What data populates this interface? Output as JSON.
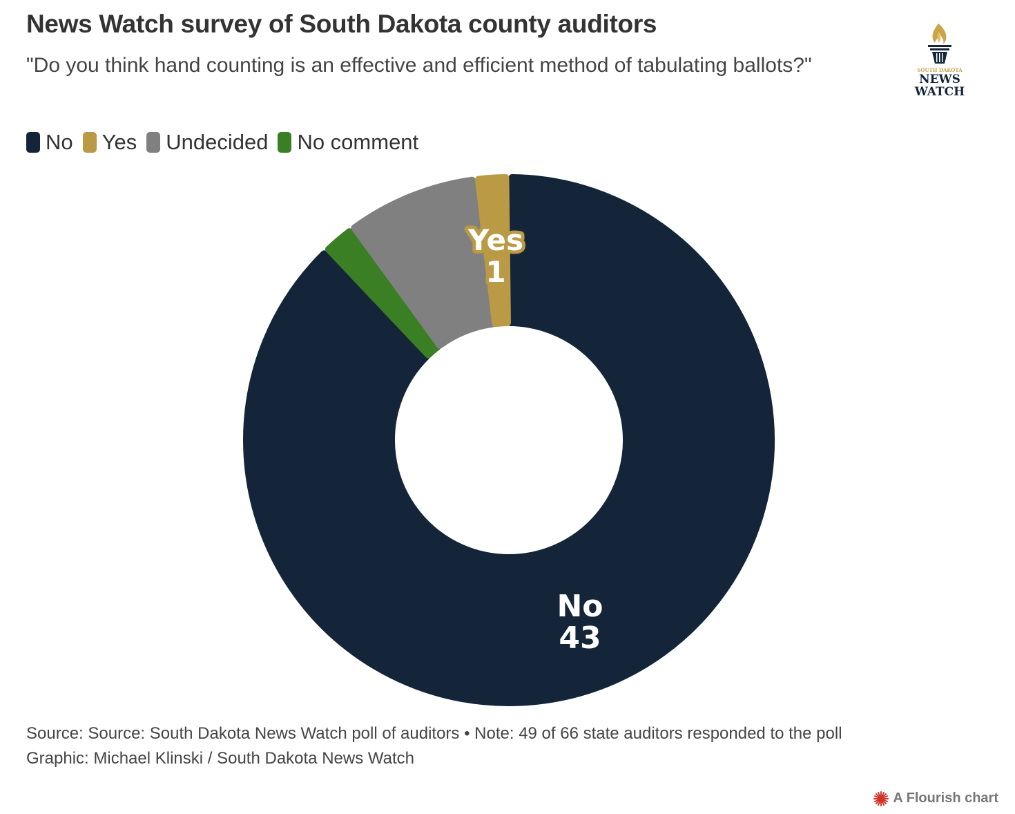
{
  "header": {
    "title": "News Watch survey of South Dakota county auditors",
    "subtitle": "\"Do you think hand counting is an effective and efficient method of tabulating ballots?\"",
    "logo": {
      "top_text": "SOUTH DAKOTA",
      "line1": "NEWS",
      "line2": "WATCH",
      "icon": "torch-icon"
    }
  },
  "legend": [
    {
      "label": "No",
      "color": "#14253a"
    },
    {
      "label": "Yes",
      "color": "#bb9a46"
    },
    {
      "label": "Undecided",
      "color": "#808080"
    },
    {
      "label": "No comment",
      "color": "#3a7f24"
    }
  ],
  "labels": {
    "no_name": "No",
    "no_value": "43",
    "yes_name": "Yes",
    "yes_value": "1"
  },
  "footer": {
    "line1": "Source: Source: South Dakota News Watch poll of auditors • Note: 49 of 66 state auditors responded to the poll",
    "line2": "Graphic: Michael Klinski / South Dakota News Watch",
    "credit": "A Flourish chart"
  },
  "chart_data": {
    "type": "pie",
    "variant": "donut",
    "title": "News Watch survey of South Dakota county auditors",
    "subtitle": "\"Do you think hand counting is an effective and efficient method of tabulating ballots?\"",
    "categories": [
      "No",
      "Yes",
      "Undecided",
      "No comment"
    ],
    "values": [
      43,
      1,
      4,
      1
    ],
    "colors": [
      "#14253a",
      "#bb9a46",
      "#808080",
      "#3a7f24"
    ],
    "total": 49,
    "legend_position": "top-left",
    "data_labels_shown": [
      "No 43",
      "Yes 1"
    ]
  }
}
